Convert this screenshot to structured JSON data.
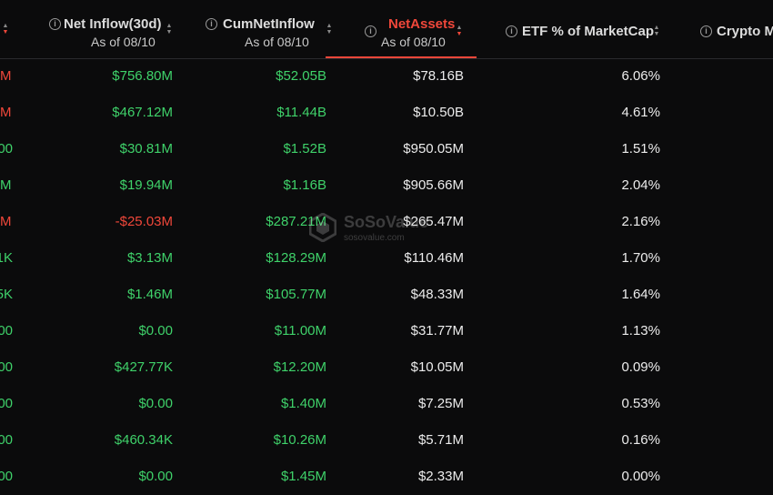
{
  "header": {
    "col_net_inflow": {
      "title": "Net Inflow(30d)",
      "sub": "As of 08/10"
    },
    "col_cum": {
      "title": "CumNetInflow",
      "sub": "As of 08/10"
    },
    "col_assets": {
      "title": "NetAssets",
      "sub": "As of 08/10"
    },
    "col_etf_pct": {
      "title": "ETF % of MarketCap"
    },
    "col_crypto": {
      "title": "Crypto M"
    }
  },
  "watermark": {
    "brand": "SoSoValue",
    "url": "sosovalue.com"
  },
  "rows": [
    {
      "prev": "M",
      "prev_color": "red",
      "inflow": "$756.80M",
      "inflow_color": "green",
      "cum": "$52.05B",
      "assets": "$78.16B",
      "pct": "6.06%"
    },
    {
      "prev": "M",
      "prev_color": "red",
      "inflow": "$467.12M",
      "inflow_color": "green",
      "cum": "$11.44B",
      "assets": "$10.50B",
      "pct": "4.61%"
    },
    {
      "prev": "00",
      "prev_color": "green",
      "inflow": "$30.81M",
      "inflow_color": "green",
      "cum": "$1.52B",
      "assets": "$950.05M",
      "pct": "1.51%"
    },
    {
      "prev": "M",
      "prev_color": "green",
      "inflow": "$19.94M",
      "inflow_color": "green",
      "cum": "$1.16B",
      "assets": "$905.66M",
      "pct": "2.04%"
    },
    {
      "prev": "M",
      "prev_color": "red",
      "inflow": "-$25.03M",
      "inflow_color": "red",
      "cum": "$287.21M",
      "assets": "$265.47M",
      "pct": "2.16%"
    },
    {
      "prev": "1K",
      "prev_color": "green",
      "inflow": "$3.13M",
      "inflow_color": "green",
      "cum": "$128.29M",
      "assets": "$110.46M",
      "pct": "1.70%"
    },
    {
      "prev": "5K",
      "prev_color": "green",
      "inflow": "$1.46M",
      "inflow_color": "green",
      "cum": "$105.77M",
      "assets": "$48.33M",
      "pct": "1.64%"
    },
    {
      "prev": "00",
      "prev_color": "green",
      "inflow": "$0.00",
      "inflow_color": "green",
      "cum": "$11.00M",
      "assets": "$31.77M",
      "pct": "1.13%"
    },
    {
      "prev": "00",
      "prev_color": "green",
      "inflow": "$427.77K",
      "inflow_color": "green",
      "cum": "$12.20M",
      "assets": "$10.05M",
      "pct": "0.09%"
    },
    {
      "prev": "00",
      "prev_color": "green",
      "inflow": "$0.00",
      "inflow_color": "green",
      "cum": "$1.40M",
      "assets": "$7.25M",
      "pct": "0.53%"
    },
    {
      "prev": "00",
      "prev_color": "green",
      "inflow": "$460.34K",
      "inflow_color": "green",
      "cum": "$10.26M",
      "assets": "$5.71M",
      "pct": "0.16%"
    },
    {
      "prev": "00",
      "prev_color": "green",
      "inflow": "$0.00",
      "inflow_color": "green",
      "cum": "$1.45M",
      "assets": "$2.33M",
      "pct": "0.00%"
    }
  ],
  "colors": {
    "green": "#3fd26a",
    "red": "#f0473a",
    "background": "#0b0b0c"
  }
}
